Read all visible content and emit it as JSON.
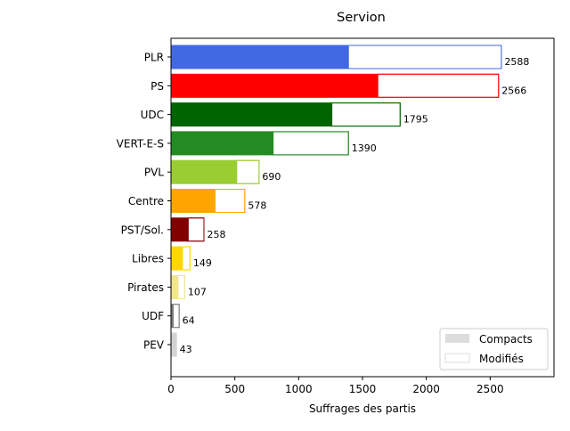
{
  "chart_data": {
    "type": "bar",
    "orientation": "horizontal",
    "stacked": true,
    "title": "Servion",
    "xlabel": "Suffrages des partis",
    "ylabel": "",
    "xlim": [
      0,
      3000
    ],
    "xticks": [
      0,
      500,
      1000,
      1500,
      2000,
      2500
    ],
    "grid": false,
    "legend_position": "bottom-right",
    "categories": [
      "PLR",
      "PS",
      "UDC",
      "VERT-E-S",
      "PVL",
      "Centre",
      "PST/Sol.",
      "Libres",
      "Pirates",
      "UDF",
      "PEV"
    ],
    "colors": [
      "#4169e1",
      "#ff0000",
      "#006400",
      "#228b22",
      "#9acd32",
      "#ffa500",
      "#800000",
      "#ffd700",
      "#f0e68c",
      "#808080",
      "#d3d3d3"
    ],
    "series": [
      {
        "name": "Compacts",
        "values": [
          1390,
          1620,
          1260,
          800,
          515,
          345,
          135,
          90,
          55,
          18,
          43
        ]
      },
      {
        "name": "Modifiés",
        "values": [
          1198,
          946,
          535,
          590,
          175,
          233,
          123,
          59,
          52,
          46,
          0
        ]
      }
    ],
    "totals": [
      2588,
      2566,
      1795,
      1390,
      690,
      578,
      258,
      149,
      107,
      64,
      43
    ],
    "legend": [
      {
        "label": "Compacts",
        "color": "#dddddd"
      },
      {
        "label": "Modifiés",
        "color": "#ffffff"
      }
    ]
  }
}
